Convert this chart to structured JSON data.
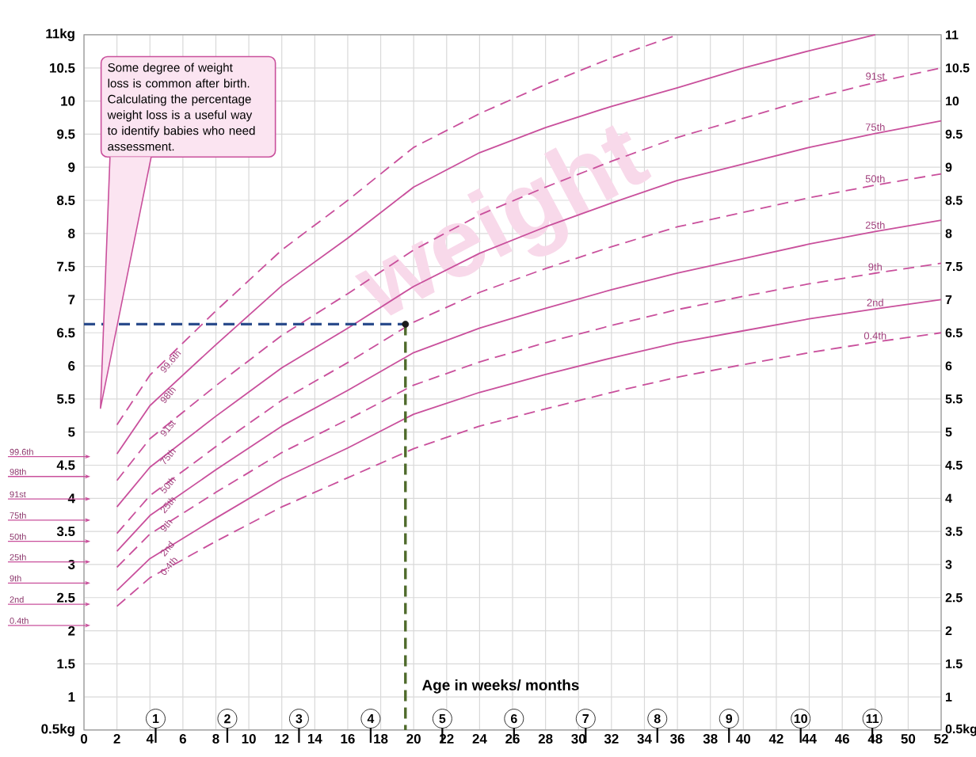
{
  "chart_data": {
    "type": "line",
    "xlabel": "Age in weeks/ months",
    "x": [
      2,
      4,
      8,
      12,
      16,
      20,
      24,
      28,
      32,
      36,
      40,
      44,
      48,
      52
    ],
    "series": [
      {
        "name": "0.4th",
        "color": "#c9509c",
        "line_style": "dashed",
        "values": [
          2.37,
          2.8,
          3.35,
          3.87,
          4.31,
          4.75,
          5.09,
          5.35,
          5.6,
          5.83,
          6.02,
          6.2,
          6.36,
          6.5
        ]
      },
      {
        "name": "2nd",
        "color": "#c9509c",
        "line_style": "solid",
        "values": [
          2.61,
          3.09,
          3.7,
          4.29,
          4.76,
          5.27,
          5.6,
          5.87,
          6.12,
          6.35,
          6.53,
          6.71,
          6.86,
          7.0
        ]
      },
      {
        "name": "9th",
        "color": "#c9509c",
        "line_style": "dashed",
        "values": [
          2.96,
          3.46,
          4.09,
          4.69,
          5.19,
          5.71,
          6.06,
          6.35,
          6.61,
          6.85,
          7.05,
          7.24,
          7.4,
          7.55
        ]
      },
      {
        "name": "25th",
        "color": "#c9509c",
        "line_style": "solid",
        "values": [
          3.2,
          3.74,
          4.43,
          5.09,
          5.63,
          6.2,
          6.57,
          6.87,
          7.15,
          7.4,
          7.62,
          7.84,
          8.03,
          8.2
        ]
      },
      {
        "name": "50th",
        "color": "#c9509c",
        "line_style": "dashed",
        "values": [
          3.47,
          4.04,
          4.78,
          5.48,
          6.05,
          6.66,
          7.11,
          7.47,
          7.8,
          8.1,
          8.32,
          8.54,
          8.73,
          8.9
        ]
      },
      {
        "name": "75th",
        "color": "#c9509c",
        "line_style": "solid",
        "values": [
          3.87,
          4.47,
          5.24,
          5.97,
          6.57,
          7.2,
          7.7,
          8.1,
          8.46,
          8.8,
          9.05,
          9.3,
          9.51,
          9.7
        ]
      },
      {
        "name": "91st",
        "color": "#c9509c",
        "line_style": "dashed",
        "values": [
          4.27,
          4.9,
          5.7,
          6.46,
          7.09,
          7.75,
          8.28,
          8.7,
          9.09,
          9.45,
          9.74,
          10.03,
          10.28,
          10.5
        ]
      },
      {
        "name": "98th",
        "color": "#c9509c",
        "line_style": "solid",
        "x": [
          2,
          4,
          8,
          12,
          16,
          20,
          24,
          28,
          32,
          36,
          40,
          44,
          48
        ],
        "values": [
          4.67,
          5.4,
          6.32,
          7.21,
          7.93,
          8.7,
          9.22,
          9.6,
          9.92,
          10.2,
          10.5,
          10.76,
          11.0
        ]
      },
      {
        "name": "99.6th",
        "color": "#c9509c",
        "line_style": "dashed",
        "x": [
          2,
          4,
          8,
          12,
          16,
          20,
          24,
          28,
          32,
          36
        ],
        "values": [
          5.11,
          5.86,
          6.83,
          7.75,
          8.5,
          9.3,
          9.81,
          10.25,
          10.65,
          11.0
        ]
      },
      {
        "type": "line",
        "color": "#2b4c8c",
        "line_style": "dashed",
        "x": [
          0,
          19.5
        ],
        "values": [
          6.63,
          6.63
        ]
      },
      {
        "type": "line",
        "color": "#4f6b2c",
        "line_style": "dashed",
        "x": [
          19.5,
          19.5
        ],
        "values": [
          6.63,
          0.5
        ]
      },
      {
        "type": "scatter",
        "color": "#1a1a1a",
        "x": [
          19.5
        ],
        "values": [
          6.63
        ]
      }
    ],
    "xlim": [
      0,
      52
    ],
    "ylim": [
      0.5,
      11
    ],
    "xticks": [
      0,
      2,
      4,
      6,
      8,
      10,
      12,
      14,
      16,
      18,
      20,
      22,
      24,
      26,
      28,
      30,
      32,
      34,
      36,
      38,
      40,
      42,
      44,
      46,
      48,
      50,
      52
    ],
    "yticks": [
      {
        "value": 0.5,
        "label": "0.5kg"
      },
      1,
      1.5,
      2,
      2.5,
      3,
      3.5,
      4,
      4.5,
      5,
      5.5,
      6,
      6.5,
      7,
      7.5,
      8,
      8.5,
      9,
      9.5,
      10,
      10.5,
      {
        "value": 11,
        "label": "11kg"
      }
    ],
    "y2lim": [
      0.5,
      11
    ],
    "y2ticks": [
      {
        "value": 0.5,
        "label": "0.5kg"
      },
      1,
      1.5,
      2,
      2.5,
      3,
      3.5,
      4,
      4.5,
      5,
      5.5,
      6,
      6.5,
      7,
      7.5,
      8,
      8.5,
      9,
      9.5,
      10,
      10.5,
      11
    ],
    "x2lim": [
      0,
      11.96
    ],
    "x2ticks": [
      1,
      2,
      3,
      4,
      5,
      6,
      7,
      8,
      9,
      10,
      11
    ],
    "grid": true,
    "legend": false,
    "annotations": [
      "Some degree of weight loss is common after birth. Calculating the percentage weight loss is a useful way to identify babies who need assessment.",
      "weight"
    ],
    "ref_lines": [
      {
        "axis": "y",
        "value": 4.63,
        "label": "99.6th",
        "color": "#c9509c"
      },
      {
        "axis": "y",
        "value": 4.33,
        "label": "98th",
        "color": "#c9509c"
      },
      {
        "axis": "y",
        "value": 3.99,
        "label": "91st",
        "color": "#c9509c"
      },
      {
        "axis": "y",
        "value": 3.67,
        "label": "75th",
        "color": "#c9509c"
      },
      {
        "axis": "y",
        "value": 3.35,
        "label": "50th",
        "color": "#c9509c"
      },
      {
        "axis": "y",
        "value": 3.04,
        "label": "25th",
        "color": "#c9509c"
      },
      {
        "axis": "y",
        "value": 2.72,
        "label": "9th",
        "color": "#c9509c"
      },
      {
        "axis": "y",
        "value": 2.4,
        "label": "2nd",
        "color": "#c9509c"
      },
      {
        "axis": "y",
        "value": 2.08,
        "label": "0.4th",
        "color": "#c9509c"
      }
    ]
  }
}
